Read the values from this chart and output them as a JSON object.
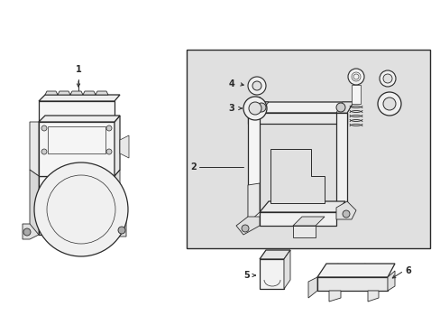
{
  "bg_color": "#ffffff",
  "line_color": "#2a2a2a",
  "box_bg": "#e0e0e0",
  "fig_width": 4.89,
  "fig_height": 3.6,
  "dpi": 100
}
